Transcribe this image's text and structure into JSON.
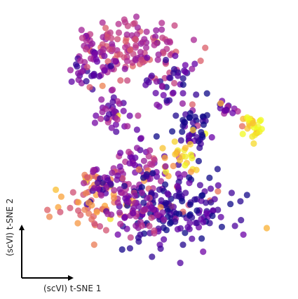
{
  "chart_data": {
    "type": "scatter",
    "xlabel": "(scVI) t-SNE 1",
    "ylabel": "(scVI) t-SNE 2",
    "title": "",
    "grid": false,
    "legend": "none",
    "xlim": [
      -50,
      50
    ],
    "ylim": [
      -50,
      50
    ],
    "colormap": [
      "#0d0887",
      "#6a00a8",
      "#b12a90",
      "#e16462",
      "#fca636",
      "#f0f921"
    ],
    "clusters": [
      {
        "center": [
          -8,
          38
        ],
        "spread": [
          9,
          7
        ],
        "n": 130,
        "c": 0.45
      },
      {
        "center": [
          -27,
          30
        ],
        "spread": [
          5,
          4
        ],
        "n": 45,
        "c": 0.22
      },
      {
        "center": [
          -18,
          12
        ],
        "spread": [
          4,
          4
        ],
        "n": 35,
        "c": 0.28
      },
      {
        "center": [
          5,
          20
        ],
        "spread": [
          5,
          6
        ],
        "n": 40,
        "c": 0.15
      },
      {
        "center": [
          14,
          6
        ],
        "spread": [
          4,
          5
        ],
        "n": 45,
        "c": 0.05
      },
      {
        "center": [
          28,
          14
        ],
        "spread": [
          2,
          2
        ],
        "n": 14,
        "c": 0.25
      },
      {
        "center": [
          38,
          7
        ],
        "spread": [
          2.5,
          2.5
        ],
        "n": 28,
        "c": 0.97
      },
      {
        "center": [
          -8,
          -10
        ],
        "spread": [
          6,
          6
        ],
        "n": 60,
        "c": 0.28
      },
      {
        "center": [
          -25,
          -22
        ],
        "spread": [
          7,
          6
        ],
        "n": 70,
        "c": 0.65
      },
      {
        "center": [
          6,
          -25
        ],
        "spread": [
          12,
          8
        ],
        "n": 180,
        "c": 0.08
      },
      {
        "center": [
          -10,
          -26
        ],
        "spread": [
          6,
          5
        ],
        "n": 50,
        "c": 0.35
      },
      {
        "center": [
          -22,
          -15
        ],
        "spread": [
          3,
          3
        ],
        "n": 22,
        "c": 0.2
      },
      {
        "center": [
          10,
          -5
        ],
        "spread": [
          4,
          4
        ],
        "n": 25,
        "c": 0.85
      },
      {
        "center": [
          -28,
          40
        ],
        "spread": [
          3,
          2
        ],
        "n": 12,
        "c": 0.35
      }
    ]
  }
}
